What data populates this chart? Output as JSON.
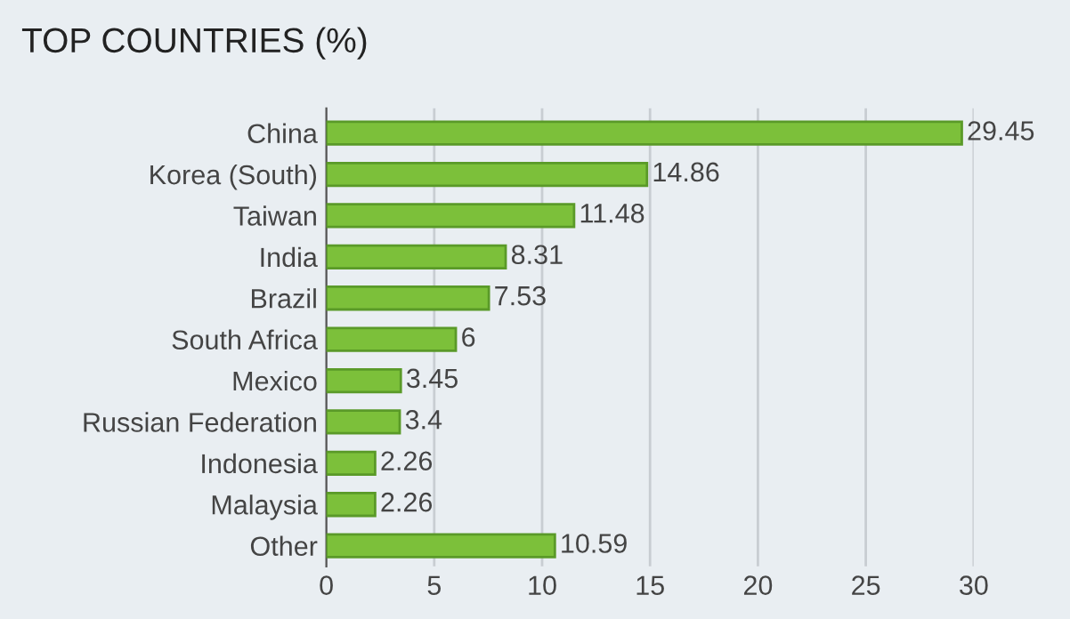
{
  "chart_data": {
    "type": "bar",
    "orientation": "horizontal",
    "title": "TOP COUNTRIES (%)",
    "categories": [
      "China",
      "Korea (South)",
      "Taiwan",
      "India",
      "Brazil",
      "South Africa",
      "Mexico",
      "Russian Federation",
      "Indonesia",
      "Malaysia",
      "Other"
    ],
    "values": [
      29.45,
      14.86,
      11.48,
      8.31,
      7.53,
      6,
      3.45,
      3.4,
      2.26,
      2.26,
      10.59
    ],
    "color": "#7cc03a",
    "xlim": [
      0,
      30
    ],
    "xticks": [
      0,
      5,
      10,
      15,
      20,
      25,
      30
    ],
    "grid": "x",
    "data_labels": true
  }
}
